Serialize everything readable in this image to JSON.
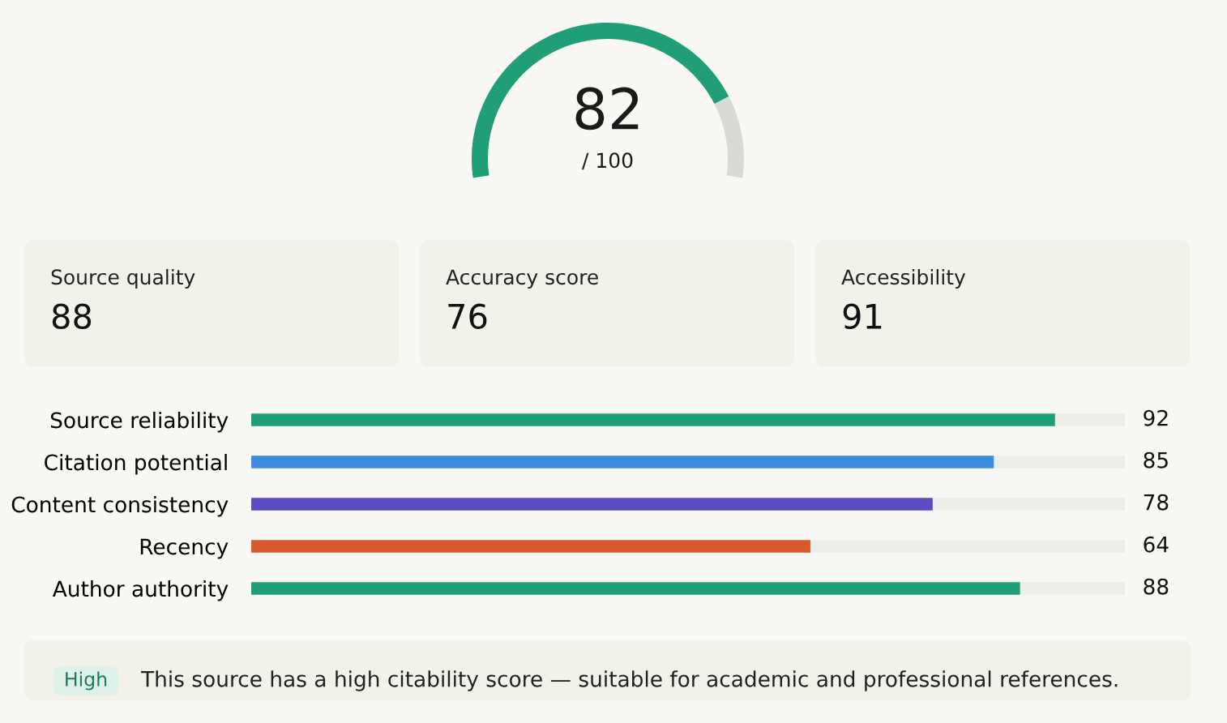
{
  "chart_data": [
    {
      "type": "donut",
      "categories": [
        null,
        null
      ],
      "values": [
        82,
        18
      ],
      "colors": [
        "#1f9e78",
        "#d9d9d5"
      ],
      "annotations": [
        "82",
        "/ 100"
      ]
    },
    {
      "type": "other",
      "annotations": [
        "Source quality",
        "88",
        "Accuracy score",
        "76",
        "Accessibility",
        "91"
      ]
    },
    {
      "type": "bar",
      "orientation": "horizontal",
      "categories": [
        "Source reliability",
        "Citation potential",
        "Content consistency",
        "Recency",
        "Author authority"
      ],
      "values": [
        92,
        85,
        78,
        64,
        88
      ],
      "colors": [
        "#1f9e78",
        "#3b8de0",
        "#5b4dbf",
        "#d9592e",
        "#1f9e78"
      ],
      "xlim": [
        0,
        100
      ],
      "data_labels": true,
      "tick_labels": "y"
    },
    {
      "type": "other",
      "annotations": [
        "High",
        "This source has a high citability score — suitable for academic and professional references."
      ]
    }
  ]
}
